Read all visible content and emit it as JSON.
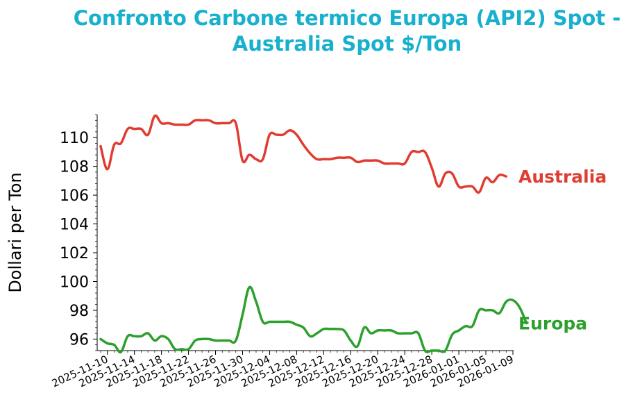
{
  "chart_data": {
    "type": "line",
    "title_line1": "Confronto Carbone termico Europa (API2) Spot -",
    "title_line2": "Australia Spot $/Ton",
    "ylabel": "Dollari per Ton",
    "xlabel": "",
    "ylim": [
      95.2,
      111.6
    ],
    "yticks": [
      "96",
      "98",
      "100",
      "102",
      "104",
      "106",
      "108",
      "110"
    ],
    "xticks": [
      "2025-11-10",
      "2025-11-14",
      "2025-11-18",
      "2025-11-22",
      "2025-11-26",
      "2025-11-30",
      "2025-12-04",
      "2025-12-08",
      "2025-12-12",
      "2025-12-16",
      "2025-12-20",
      "2025-12-24",
      "2025-12-28",
      "2026-01-01",
      "2026-01-05",
      "2026-01-09"
    ],
    "x_range": [
      "2025-11-09",
      "2026-01-09"
    ],
    "grid": false,
    "legend": "none",
    "series": [
      {
        "name": "Australia",
        "color": "#e03c31",
        "points": [
          [
            "2025-11-09",
            109.4
          ],
          [
            "2025-11-10",
            107.8
          ],
          [
            "2025-11-11",
            109.5
          ],
          [
            "2025-11-12",
            109.6
          ],
          [
            "2025-11-13",
            110.6
          ],
          [
            "2025-11-14",
            110.6
          ],
          [
            "2025-11-15",
            110.6
          ],
          [
            "2025-11-16",
            110.2
          ],
          [
            "2025-11-17",
            111.5
          ],
          [
            "2025-11-18",
            111.0
          ],
          [
            "2025-11-19",
            111.0
          ],
          [
            "2025-11-20",
            110.9
          ],
          [
            "2025-11-21",
            110.9
          ],
          [
            "2025-11-22",
            110.9
          ],
          [
            "2025-11-23",
            111.2
          ],
          [
            "2025-11-24",
            111.2
          ],
          [
            "2025-11-25",
            111.2
          ],
          [
            "2025-11-26",
            111.0
          ],
          [
            "2025-11-27",
            111.0
          ],
          [
            "2025-11-28",
            111.0
          ],
          [
            "2025-11-29",
            111.0
          ],
          [
            "2025-11-30",
            108.4
          ],
          [
            "2025-12-01",
            108.8
          ],
          [
            "2025-12-02",
            108.5
          ],
          [
            "2025-12-03",
            108.5
          ],
          [
            "2025-12-04",
            110.2
          ],
          [
            "2025-12-05",
            110.2
          ],
          [
            "2025-12-06",
            110.2
          ],
          [
            "2025-12-07",
            110.5
          ],
          [
            "2025-12-08",
            110.2
          ],
          [
            "2025-12-09",
            109.5
          ],
          [
            "2025-12-10",
            108.9
          ],
          [
            "2025-12-11",
            108.5
          ],
          [
            "2025-12-12",
            108.5
          ],
          [
            "2025-12-13",
            108.5
          ],
          [
            "2025-12-14",
            108.6
          ],
          [
            "2025-12-15",
            108.6
          ],
          [
            "2025-12-16",
            108.6
          ],
          [
            "2025-12-17",
            108.3
          ],
          [
            "2025-12-18",
            108.4
          ],
          [
            "2025-12-19",
            108.4
          ],
          [
            "2025-12-20",
            108.4
          ],
          [
            "2025-12-21",
            108.2
          ],
          [
            "2025-12-22",
            108.2
          ],
          [
            "2025-12-23",
            108.2
          ],
          [
            "2025-12-24",
            108.2
          ],
          [
            "2025-12-25",
            109.0
          ],
          [
            "2025-12-26",
            109.0
          ],
          [
            "2025-12-27",
            109.0
          ],
          [
            "2025-12-28",
            107.9
          ],
          [
            "2025-12-29",
            106.6
          ],
          [
            "2025-12-30",
            107.5
          ],
          [
            "2025-12-31",
            107.5
          ],
          [
            "2026-01-01",
            106.6
          ],
          [
            "2026-01-02",
            106.6
          ],
          [
            "2026-01-03",
            106.6
          ],
          [
            "2026-01-04",
            106.2
          ],
          [
            "2026-01-05",
            107.2
          ],
          [
            "2026-01-06",
            106.9
          ],
          [
            "2026-01-07",
            107.4
          ],
          [
            "2026-01-08",
            107.3
          ]
        ]
      },
      {
        "name": "Europa",
        "color": "#2ca02c",
        "points": [
          [
            "2025-11-09",
            96.0
          ],
          [
            "2025-11-10",
            95.7
          ],
          [
            "2025-11-11",
            95.6
          ],
          [
            "2025-11-12",
            95.1
          ],
          [
            "2025-11-13",
            96.2
          ],
          [
            "2025-11-14",
            96.2
          ],
          [
            "2025-11-15",
            96.2
          ],
          [
            "2025-11-16",
            96.4
          ],
          [
            "2025-11-17",
            95.9
          ],
          [
            "2025-11-18",
            96.2
          ],
          [
            "2025-11-19",
            96.0
          ],
          [
            "2025-11-20",
            95.3
          ],
          [
            "2025-11-21",
            95.3
          ],
          [
            "2025-11-22",
            95.3
          ],
          [
            "2025-11-23",
            95.9
          ],
          [
            "2025-11-24",
            96.0
          ],
          [
            "2025-11-25",
            96.0
          ],
          [
            "2025-11-26",
            95.9
          ],
          [
            "2025-11-27",
            95.9
          ],
          [
            "2025-11-28",
            95.9
          ],
          [
            "2025-11-29",
            95.9
          ],
          [
            "2025-11-30",
            97.7
          ],
          [
            "2025-12-01",
            99.6
          ],
          [
            "2025-12-02",
            98.6
          ],
          [
            "2025-12-03",
            97.2
          ],
          [
            "2025-12-04",
            97.2
          ],
          [
            "2025-12-05",
            97.2
          ],
          [
            "2025-12-06",
            97.2
          ],
          [
            "2025-12-07",
            97.2
          ],
          [
            "2025-12-08",
            97.0
          ],
          [
            "2025-12-09",
            96.8
          ],
          [
            "2025-12-10",
            96.2
          ],
          [
            "2025-12-11",
            96.4
          ],
          [
            "2025-12-12",
            96.7
          ],
          [
            "2025-12-13",
            96.7
          ],
          [
            "2025-12-14",
            96.7
          ],
          [
            "2025-12-15",
            96.6
          ],
          [
            "2025-12-16",
            95.9
          ],
          [
            "2025-12-17",
            95.5
          ],
          [
            "2025-12-18",
            96.8
          ],
          [
            "2025-12-19",
            96.4
          ],
          [
            "2025-12-20",
            96.6
          ],
          [
            "2025-12-21",
            96.6
          ],
          [
            "2025-12-22",
            96.6
          ],
          [
            "2025-12-23",
            96.4
          ],
          [
            "2025-12-24",
            96.4
          ],
          [
            "2025-12-25",
            96.4
          ],
          [
            "2025-12-26",
            96.4
          ],
          [
            "2025-12-27",
            95.2
          ],
          [
            "2025-12-28",
            95.2
          ],
          [
            "2025-12-29",
            95.2
          ],
          [
            "2025-12-30",
            95.2
          ],
          [
            "2025-12-31",
            96.3
          ],
          [
            "2026-01-01",
            96.6
          ],
          [
            "2026-01-02",
            96.9
          ],
          [
            "2026-01-03",
            96.9
          ],
          [
            "2026-01-04",
            98.0
          ],
          [
            "2026-01-05",
            98.0
          ],
          [
            "2026-01-06",
            98.0
          ],
          [
            "2026-01-07",
            97.8
          ],
          [
            "2026-01-08",
            98.6
          ],
          [
            "2026-01-09",
            98.7
          ],
          [
            "2026-01-10",
            98.2
          ],
          [
            "2026-01-11",
            97.1
          ]
        ]
      }
    ]
  }
}
